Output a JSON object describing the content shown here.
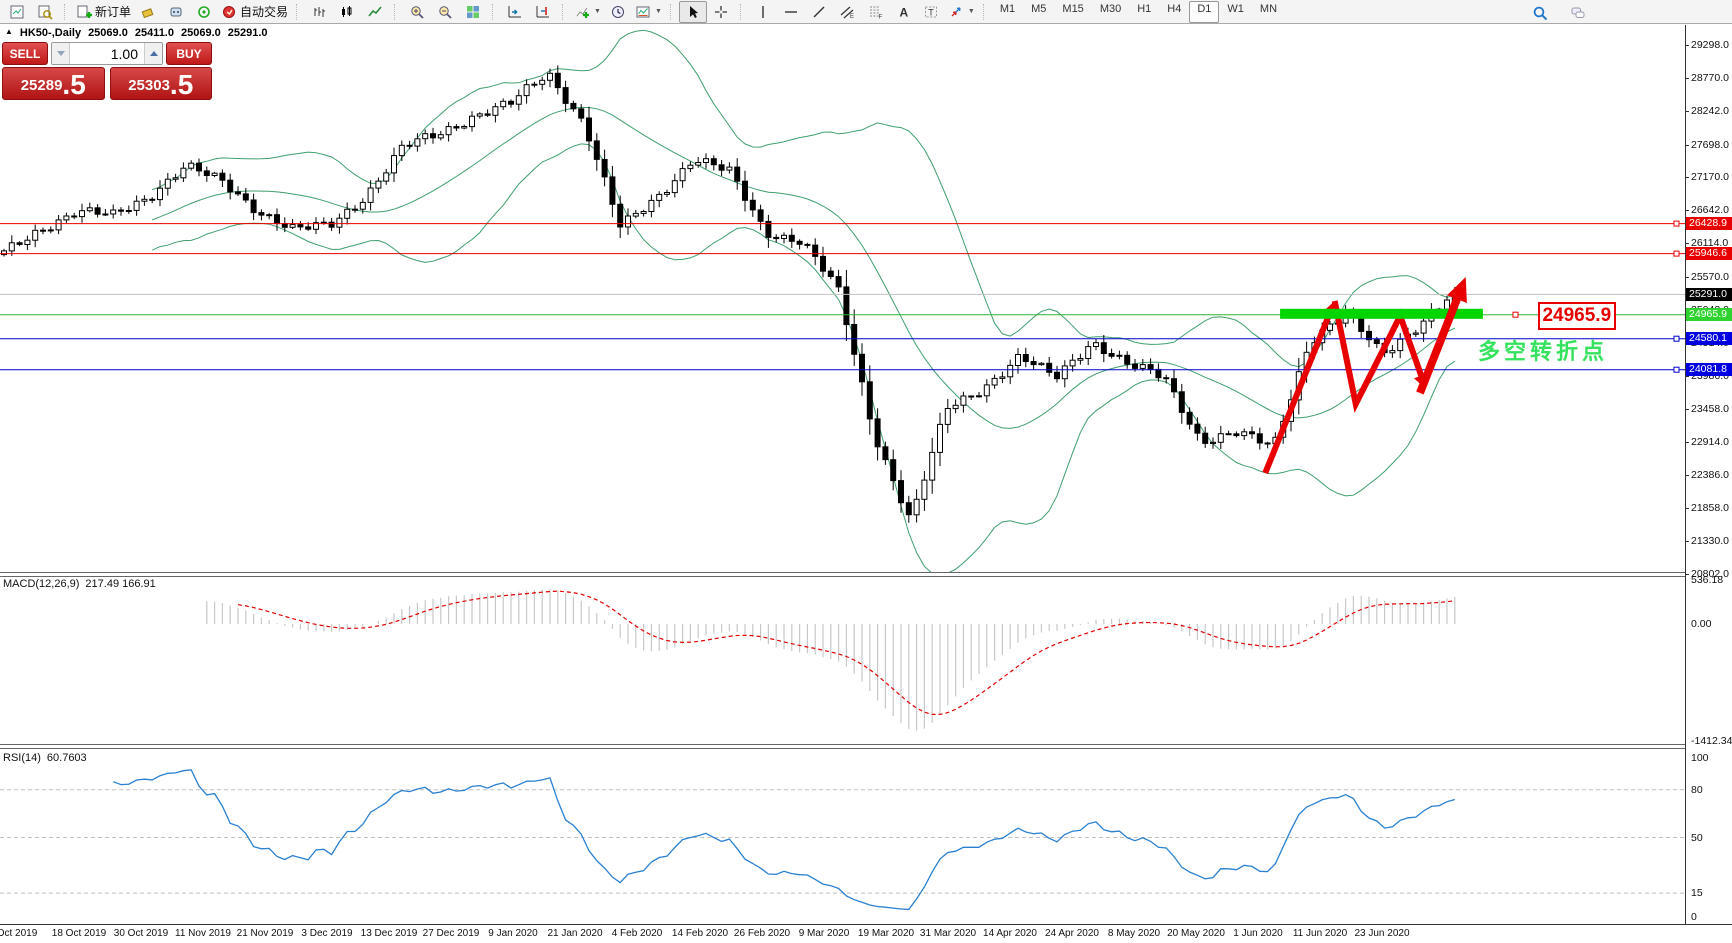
{
  "toolbar": {
    "new_order_label": "新订单",
    "auto_trading_label": "自动交易",
    "timeframes": [
      "M1",
      "M5",
      "M15",
      "M30",
      "H1",
      "H4",
      "D1",
      "W1",
      "MN"
    ],
    "active_timeframe": "D1"
  },
  "chart": {
    "info": {
      "symbol_period": "HK50-,Daily",
      "open": "25069.0",
      "high": "25411.0",
      "low": "25069.0",
      "close": "25291.0"
    },
    "trade_panel": {
      "sell_label": "SELL",
      "buy_label": "BUY",
      "volume": "1.00",
      "sell_price_main": "25289",
      "sell_price_frac": ".5",
      "buy_price_main": "25303",
      "buy_price_frac": ".5"
    },
    "price_axis_ticks": [
      "29298.0",
      "28770.0",
      "28242.0",
      "27698.0",
      "27170.0",
      "26642.0",
      "26114.0",
      "25570.0",
      "25042.0",
      "24514.0",
      "23986.0",
      "23458.0",
      "22914.0",
      "22386.0",
      "21858.0",
      "21330.0",
      "20802.0"
    ],
    "price_badges": [
      {
        "label": "26428.9",
        "price": 26428.9,
        "bg": "#e80000"
      },
      {
        "label": "25946.6",
        "price": 25946.6,
        "bg": "#e80000"
      },
      {
        "label": "25291.0",
        "price": 25291.0,
        "bg": "#000000"
      },
      {
        "label": "24965.9",
        "price": 24965.9,
        "bg": "#2fd32f"
      },
      {
        "label": "24580.1",
        "price": 24580.1,
        "bg": "#0000e0"
      },
      {
        "label": "24081.8",
        "price": 24081.8,
        "bg": "#0000e0"
      }
    ],
    "date_axis": [
      "Oct 2019",
      "18 Oct 2019",
      "30 Oct 2019",
      "11 Nov 2019",
      "21 Nov 2019",
      "3 Dec 2019",
      "13 Dec 2019",
      "27 Dec 2019",
      "9 Jan 2020",
      "21 Jan 2020",
      "4 Feb 2020",
      "14 Feb 2020",
      "26 Feb 2020",
      "9 Mar 2020",
      "19 Mar 2020",
      "31 Mar 2020",
      "14 Apr 2020",
      "24 Apr 2020",
      "8 May 2020",
      "20 May 2020",
      "1 Jun 2020",
      "11 Jun 2020",
      "23 Jun 2020"
    ]
  },
  "macd_panel": {
    "label": "MACD(12,26,9)",
    "values": "217.49 166.91",
    "axis_ticks": [
      "536.18",
      "0.00",
      "-1412.34"
    ]
  },
  "rsi_panel": {
    "label": "RSI(14)",
    "value": "60.7603",
    "axis_ticks": [
      "100",
      "80",
      "50",
      "15",
      "0"
    ],
    "levels": [
      80,
      50,
      15
    ]
  },
  "annotations": {
    "callout_text": "24965.9",
    "turning_point_text": "多空转折点"
  },
  "colors": {
    "bollinger": "#3f9e6e",
    "candle_up_fill": "#ffffff",
    "candle_down_fill": "#000000",
    "candle_stroke": "#000000",
    "red_line": "#e80000",
    "blue_line": "#0000cc",
    "silver_line": "#c0c0c0",
    "green_line": "#2fb52f",
    "green_bar": "#00d500",
    "zigzag": "#e80000",
    "macd_hist": "#c8c8c8",
    "macd_signal": "#e00000",
    "rsi_line": "#2a80d0",
    "rsi_levels": "#c0c0c0",
    "turning_text": "#35e25e"
  },
  "chart_data": {
    "type": "candlestick",
    "symbol": "HK50-",
    "timeframe": "Daily",
    "bar_count": 187,
    "x_range_dates": [
      "Oct 2019",
      "23 Jun 2020"
    ],
    "y_axis_ticks": [
      29298.0,
      28770.0,
      28242.0,
      27698.0,
      27170.0,
      26642.0,
      26114.0,
      25570.0,
      25042.0,
      24514.0,
      23986.0,
      23458.0,
      22914.0,
      22386.0,
      21858.0,
      21330.0,
      20802.0
    ],
    "last_ohlc": {
      "open": 25069.0,
      "high": 25411.0,
      "low": 25069.0,
      "close": 25291.0
    },
    "close_anchors_note": "approximate closes sampled ~weekly from the chart, Oct 2019 - Jun 2020",
    "close_anchors": [
      25950,
      26350,
      26620,
      26550,
      26880,
      27350,
      27100,
      26650,
      26320,
      26400,
      26900,
      27650,
      27870,
      28180,
      28360,
      28850,
      28050,
      26350,
      26850,
      27480,
      27250,
      26300,
      26150,
      25350,
      23050,
      21650,
      23450,
      23800,
      24280,
      23950,
      24550,
      24150,
      23950,
      22950,
      23050,
      22850,
      24550,
      24950,
      24350,
      24800,
      25291
    ],
    "indicators": [
      {
        "name": "Bollinger Bands",
        "params": [
          20,
          2
        ]
      },
      {
        "name": "MACD",
        "params": [
          12,
          26,
          9
        ],
        "current_main": 217.49,
        "current_signal": 166.91,
        "scale_max": 536.18,
        "scale_min": -1412.34
      },
      {
        "name": "RSI",
        "params": [
          14
        ],
        "current": 60.7603,
        "levels": [
          80,
          50,
          15
        ],
        "scale": [
          0,
          100
        ]
      }
    ],
    "horizontal_lines": [
      {
        "price": 26428.9,
        "color": "red"
      },
      {
        "price": 25946.6,
        "color": "red"
      },
      {
        "price": 25291.0,
        "color": "silver",
        "role": "current-price"
      },
      {
        "price": 24965.9,
        "color": "green",
        "role": "callout-level"
      },
      {
        "price": 24580.1,
        "color": "blue"
      },
      {
        "price": 24081.8,
        "color": "blue"
      }
    ],
    "annotations": {
      "resistance_zone_bar": {
        "bar_from": 163.6,
        "bar_to": 189.6,
        "price_top": 25060,
        "price_bottom": 24900
      },
      "zigzag_bar_price": [
        [
          161.7,
          22423
        ],
        [
          170.6,
          25186
        ],
        [
          173.3,
          23531
        ],
        [
          179.0,
          24945
        ],
        [
          182.3,
          23772
        ],
        [
          187.4,
          25571
        ]
      ],
      "callout": {
        "text": "24965.9",
        "anchor_price": 24965.9,
        "bar": 196
      },
      "text_label": {
        "text": "多空转折点",
        "bar": 189,
        "price": 24463
      }
    }
  }
}
